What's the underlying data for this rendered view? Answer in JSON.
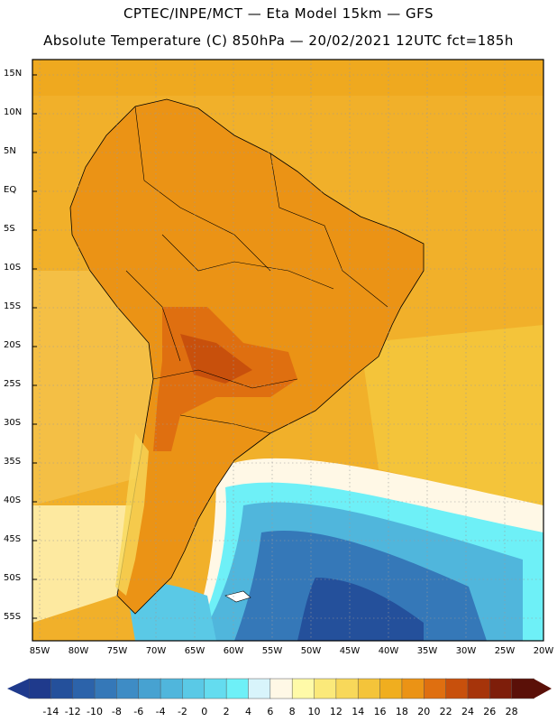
{
  "header": {
    "line1": "CPTEC/INPE/MCT —  Eta Model 15km — GFS",
    "line2": "Absolute Temperature (C) 850hPa — 20/02/2021 12UTC fct=185h"
  },
  "axes": {
    "lat_labels": [
      "15N",
      "10N",
      "5N",
      "EQ",
      "5S",
      "10S",
      "15S",
      "20S",
      "25S",
      "30S",
      "35S",
      "40S",
      "45S",
      "50S",
      "55S"
    ],
    "lon_labels": [
      "85W",
      "80W",
      "75W",
      "70W",
      "65W",
      "60W",
      "55W",
      "50W",
      "45W",
      "40W",
      "35W",
      "30W",
      "25W",
      "20W"
    ]
  },
  "colorbar": {
    "labels": [
      "-14",
      "-12",
      "-10",
      "-8",
      "-6",
      "-4",
      "-2",
      "0",
      "2",
      "4",
      "6",
      "8",
      "10",
      "12",
      "14",
      "16",
      "18",
      "20",
      "22",
      "24",
      "26",
      "28"
    ],
    "colors": [
      "#1f3a8c",
      "#24509b",
      "#2c63aa",
      "#3578b8",
      "#3e8cc5",
      "#47a2d1",
      "#50b6dc",
      "#5ac9e6",
      "#64dcef",
      "#6ef0f7",
      "#d8f4fb",
      "#fff8e6",
      "#fffaa8",
      "#fbe97a",
      "#f8d85a",
      "#f4c43a",
      "#f0ae1f",
      "#eb9315",
      "#df6f10",
      "#c8500c",
      "#a6340a",
      "#7e1e0a",
      "#5a1008"
    ]
  }
}
